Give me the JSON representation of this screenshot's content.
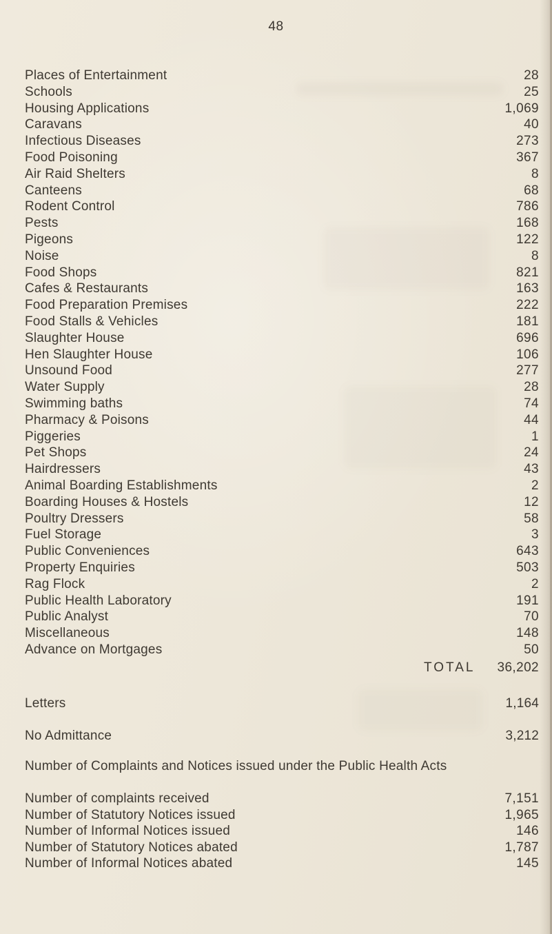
{
  "page": {
    "number": "48"
  },
  "visits_list": {
    "items": [
      {
        "label": "Places of Entertainment",
        "value": "28"
      },
      {
        "label": "Schools",
        "value": "25"
      },
      {
        "label": "Housing Applications",
        "value": "1,069"
      },
      {
        "label": "Caravans",
        "value": "40"
      },
      {
        "label": "Infectious Diseases",
        "value": "273"
      },
      {
        "label": "Food Poisoning",
        "value": "367"
      },
      {
        "label": "Air Raid Shelters",
        "value": "8"
      },
      {
        "label": "Canteens",
        "value": "68"
      },
      {
        "label": "Rodent Control",
        "value": "786"
      },
      {
        "label": "Pests",
        "value": "168"
      },
      {
        "label": "Pigeons",
        "value": "122"
      },
      {
        "label": "Noise",
        "value": "8"
      },
      {
        "label": "Food Shops",
        "value": "821"
      },
      {
        "label": "Cafes & Restaurants",
        "value": "163"
      },
      {
        "label": "Food Preparation Premises",
        "value": "222"
      },
      {
        "label": "Food Stalls & Vehicles",
        "value": "181"
      },
      {
        "label": "Slaughter House",
        "value": "696"
      },
      {
        "label": "Hen Slaughter House",
        "value": "106"
      },
      {
        "label": "Unsound Food",
        "value": "277"
      },
      {
        "label": "Water Supply",
        "value": "28"
      },
      {
        "label": "Swimming baths",
        "value": "74"
      },
      {
        "label": "Pharmacy & Poisons",
        "value": "44"
      },
      {
        "label": "Piggeries",
        "value": "1"
      },
      {
        "label": "Pet Shops",
        "value": "24"
      },
      {
        "label": "Hairdressers",
        "value": "43"
      },
      {
        "label": "Animal Boarding Establishments",
        "value": "2"
      },
      {
        "label": "Boarding Houses & Hostels",
        "value": "12"
      },
      {
        "label": "Poultry Dressers",
        "value": "58"
      },
      {
        "label": "Fuel Storage",
        "value": "3"
      },
      {
        "label": "Public Conveniences",
        "value": "643"
      },
      {
        "label": "Property Enquiries",
        "value": "503"
      },
      {
        "label": "Rag Flock",
        "value": "2"
      },
      {
        "label": "Public Health Laboratory",
        "value": "191"
      },
      {
        "label": "Public Analyst",
        "value": "70"
      },
      {
        "label": "Miscellaneous",
        "value": "148"
      },
      {
        "label": "Advance on Mortgages",
        "value": "50"
      }
    ],
    "total_label": "TOTAL",
    "total_value": "36,202"
  },
  "summary_rows": {
    "letters": {
      "label": "Letters",
      "value": "1,164"
    },
    "no_admittance": {
      "label": "No Admittance",
      "value": "3,212"
    }
  },
  "complaints_section": {
    "heading": "Number of Complaints and Notices issued under the Public Health Acts",
    "items": [
      {
        "label": "Number of complaints received",
        "value": "7,151"
      },
      {
        "label": "Number of Statutory Notices issued",
        "value": "1,965"
      },
      {
        "label": "Number of Informal Notices issued",
        "value": "146"
      },
      {
        "label": "Number of Statutory Notices abated",
        "value": "1,787"
      },
      {
        "label": "Number of Informal Notices abated",
        "value": "145"
      }
    ]
  },
  "colors": {
    "paper": "#ede7d9",
    "ink": "#3e3932"
  }
}
